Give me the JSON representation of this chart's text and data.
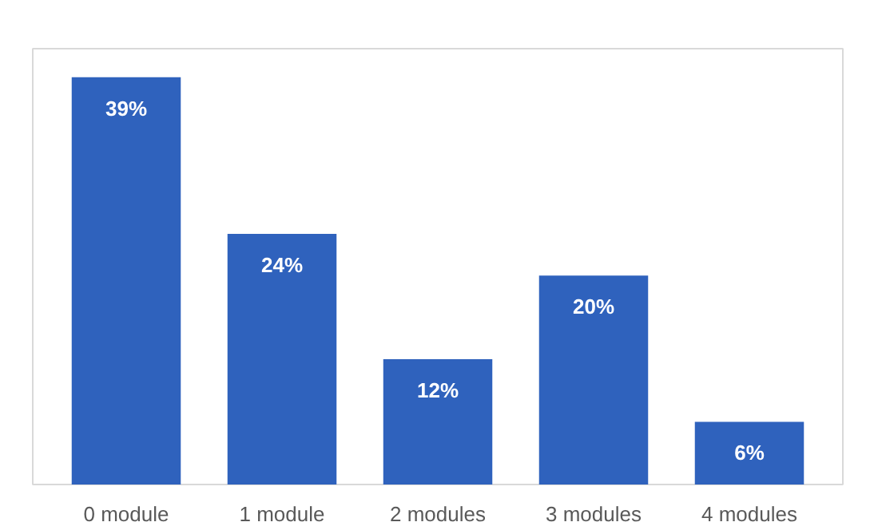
{
  "chart_data": {
    "type": "bar",
    "categories": [
      "0 module",
      "1 module",
      "2 modules",
      "3 modules",
      "4 modules"
    ],
    "values": [
      39,
      24,
      12,
      20,
      6
    ],
    "value_labels": [
      "39%",
      "24%",
      "12%",
      "20%",
      "6%"
    ],
    "color": "#2f62bd",
    "grid": false
  }
}
